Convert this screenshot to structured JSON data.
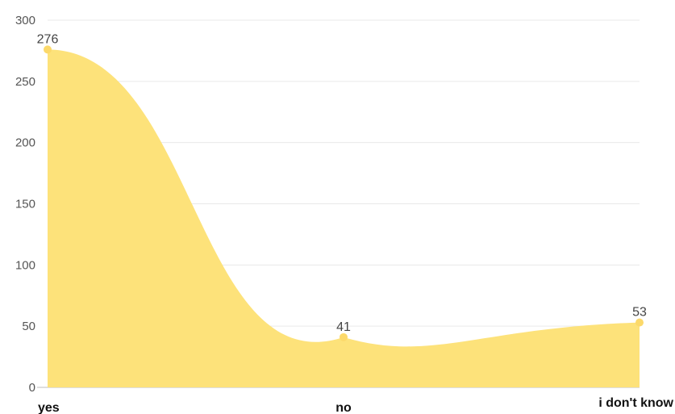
{
  "chart_data": {
    "type": "area",
    "categories": [
      "yes",
      "no",
      "i don't know"
    ],
    "values": [
      276,
      41,
      53
    ],
    "ylim": [
      0,
      300
    ],
    "yticks": [
      0,
      50,
      100,
      150,
      200,
      250,
      300
    ],
    "grid": true,
    "smooth": true,
    "legend": "none",
    "color": "#fde27a",
    "point_color": "#fcd96a"
  }
}
